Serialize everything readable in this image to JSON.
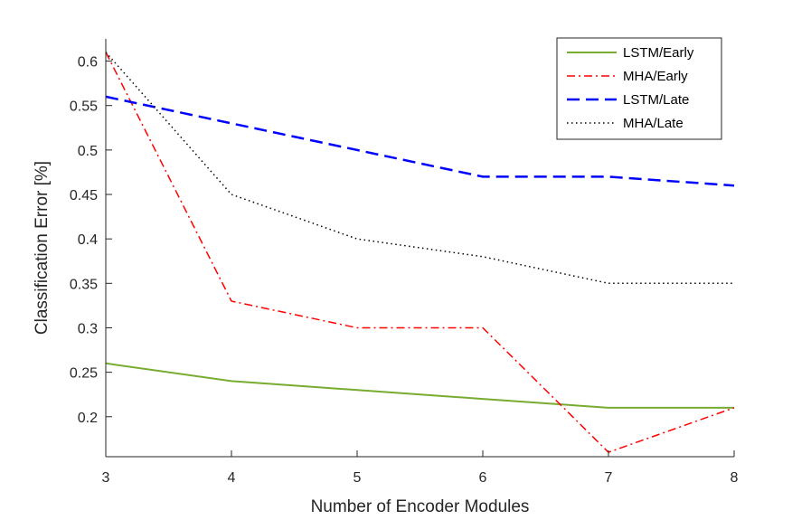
{
  "chart_data": {
    "type": "line",
    "title": "",
    "xlabel": "Number of Encoder Modules",
    "ylabel": "Classification Error [%]",
    "xlim": [
      3,
      8
    ],
    "ylim": [
      0.155,
      0.625
    ],
    "x": [
      3,
      4,
      5,
      6,
      7,
      8
    ],
    "xticks": [
      3,
      4,
      5,
      6,
      7,
      8
    ],
    "yticks": [
      0.2,
      0.25,
      0.3,
      0.35,
      0.4,
      0.45,
      0.5,
      0.55,
      0.6
    ],
    "ytick_labels": [
      "0.2",
      "0.25",
      "0.3",
      "0.35",
      "0.4",
      "0.45",
      "0.5",
      "0.55",
      "0.6"
    ],
    "grid": false,
    "legend_position": "top-right",
    "series": [
      {
        "name": "LSTM/Early",
        "color": "#77ac30",
        "style": "solid",
        "values": [
          0.26,
          0.24,
          0.23,
          0.22,
          0.21,
          0.21
        ]
      },
      {
        "name": "MHA/Early",
        "color": "#ff0000",
        "style": "dashdot",
        "values": [
          0.61,
          0.33,
          0.3,
          0.3,
          0.16,
          0.21
        ]
      },
      {
        "name": "LSTM/Late",
        "color": "#0000ff",
        "style": "dashed",
        "values": [
          0.56,
          0.53,
          0.5,
          0.47,
          0.47,
          0.46
        ]
      },
      {
        "name": "MHA/Late",
        "color": "#000000",
        "style": "dotted",
        "values": [
          0.61,
          0.45,
          0.4,
          0.38,
          0.35,
          0.35
        ]
      }
    ]
  }
}
